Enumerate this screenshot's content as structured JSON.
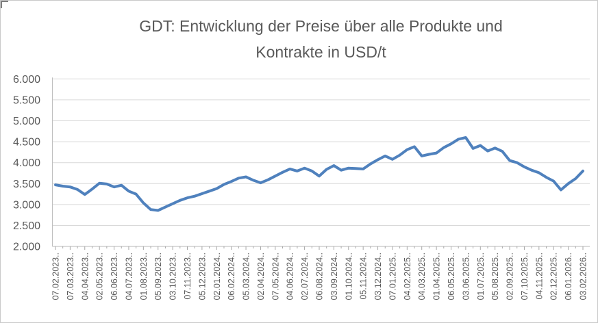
{
  "title": {
    "line1": "GDT: Entwicklung der Preise über alle Produkte und",
    "line2": "Kontrakte in USD/t"
  },
  "colors": {
    "line": "#4F81BD",
    "gridline": "#D9D9D9",
    "axis": "#BFBFBF",
    "tick": "#A6A6A6",
    "text": "#595959",
    "background": "#FFFFFF"
  },
  "chart_data": {
    "type": "line",
    "title": "GDT: Entwicklung der Preise über alle Produkte und Kontrakte in USD/t",
    "xlabel": "",
    "ylabel": "",
    "ylim": [
      2000,
      6000
    ],
    "ytick_step": 500,
    "ytick_labels_top_to_bottom": [
      "6.000",
      "5.500",
      "5.000",
      "4.500",
      "4.000",
      "3.500",
      "3.000",
      "2.500",
      "2.000"
    ],
    "grid": true,
    "legend": "none",
    "n_points": 73,
    "x_label_interval": 2,
    "x_tick_labels": [
      "07.02.2023..",
      "07.03.2023..",
      "04.04.2023..",
      "02.05.2023..",
      "06.06.2023..",
      "04.07.2023..",
      "01.08.2023..",
      "05.09.2023..",
      "03.10.2023..",
      "07.11.2023..",
      "05.12.2023..",
      "02.01.2024..",
      "06.02.2024..",
      "05.03.2024..",
      "02.04.2024..",
      "07.05.2024..",
      "04.06.2024..",
      "02.07.2024..",
      "06.08.2024..",
      "03.09.2024..",
      "01.10.2024..",
      "05.11.2024..",
      "03.12.2024..",
      "07.01.2025..",
      "04.02.2025..",
      "04.03.2025..",
      "01.04.2025..",
      "06.05.2025..",
      "03.06.2025..",
      "01.07.2025..",
      "05.08.2025..",
      "02.09.2025..",
      "07.10.2025..",
      "04.11.2025..",
      "02.12.2025..",
      "06.01.2026..",
      "03.02.2026.."
    ],
    "values": [
      3470,
      3440,
      3420,
      3360,
      3240,
      3370,
      3510,
      3490,
      3420,
      3460,
      3320,
      3250,
      3040,
      2880,
      2860,
      2940,
      3020,
      3100,
      3160,
      3200,
      3260,
      3320,
      3380,
      3480,
      3550,
      3630,
      3660,
      3580,
      3520,
      3590,
      3680,
      3770,
      3850,
      3800,
      3870,
      3800,
      3680,
      3840,
      3930,
      3820,
      3870,
      3860,
      3850,
      3970,
      4070,
      4160,
      4080,
      4180,
      4310,
      4380,
      4160,
      4200,
      4230,
      4360,
      4450,
      4560,
      4600,
      4340,
      4410,
      4280,
      4350,
      4270,
      4050,
      4000,
      3900,
      3820,
      3760,
      3650,
      3560,
      3350,
      3500,
      3620,
      3800
    ]
  }
}
